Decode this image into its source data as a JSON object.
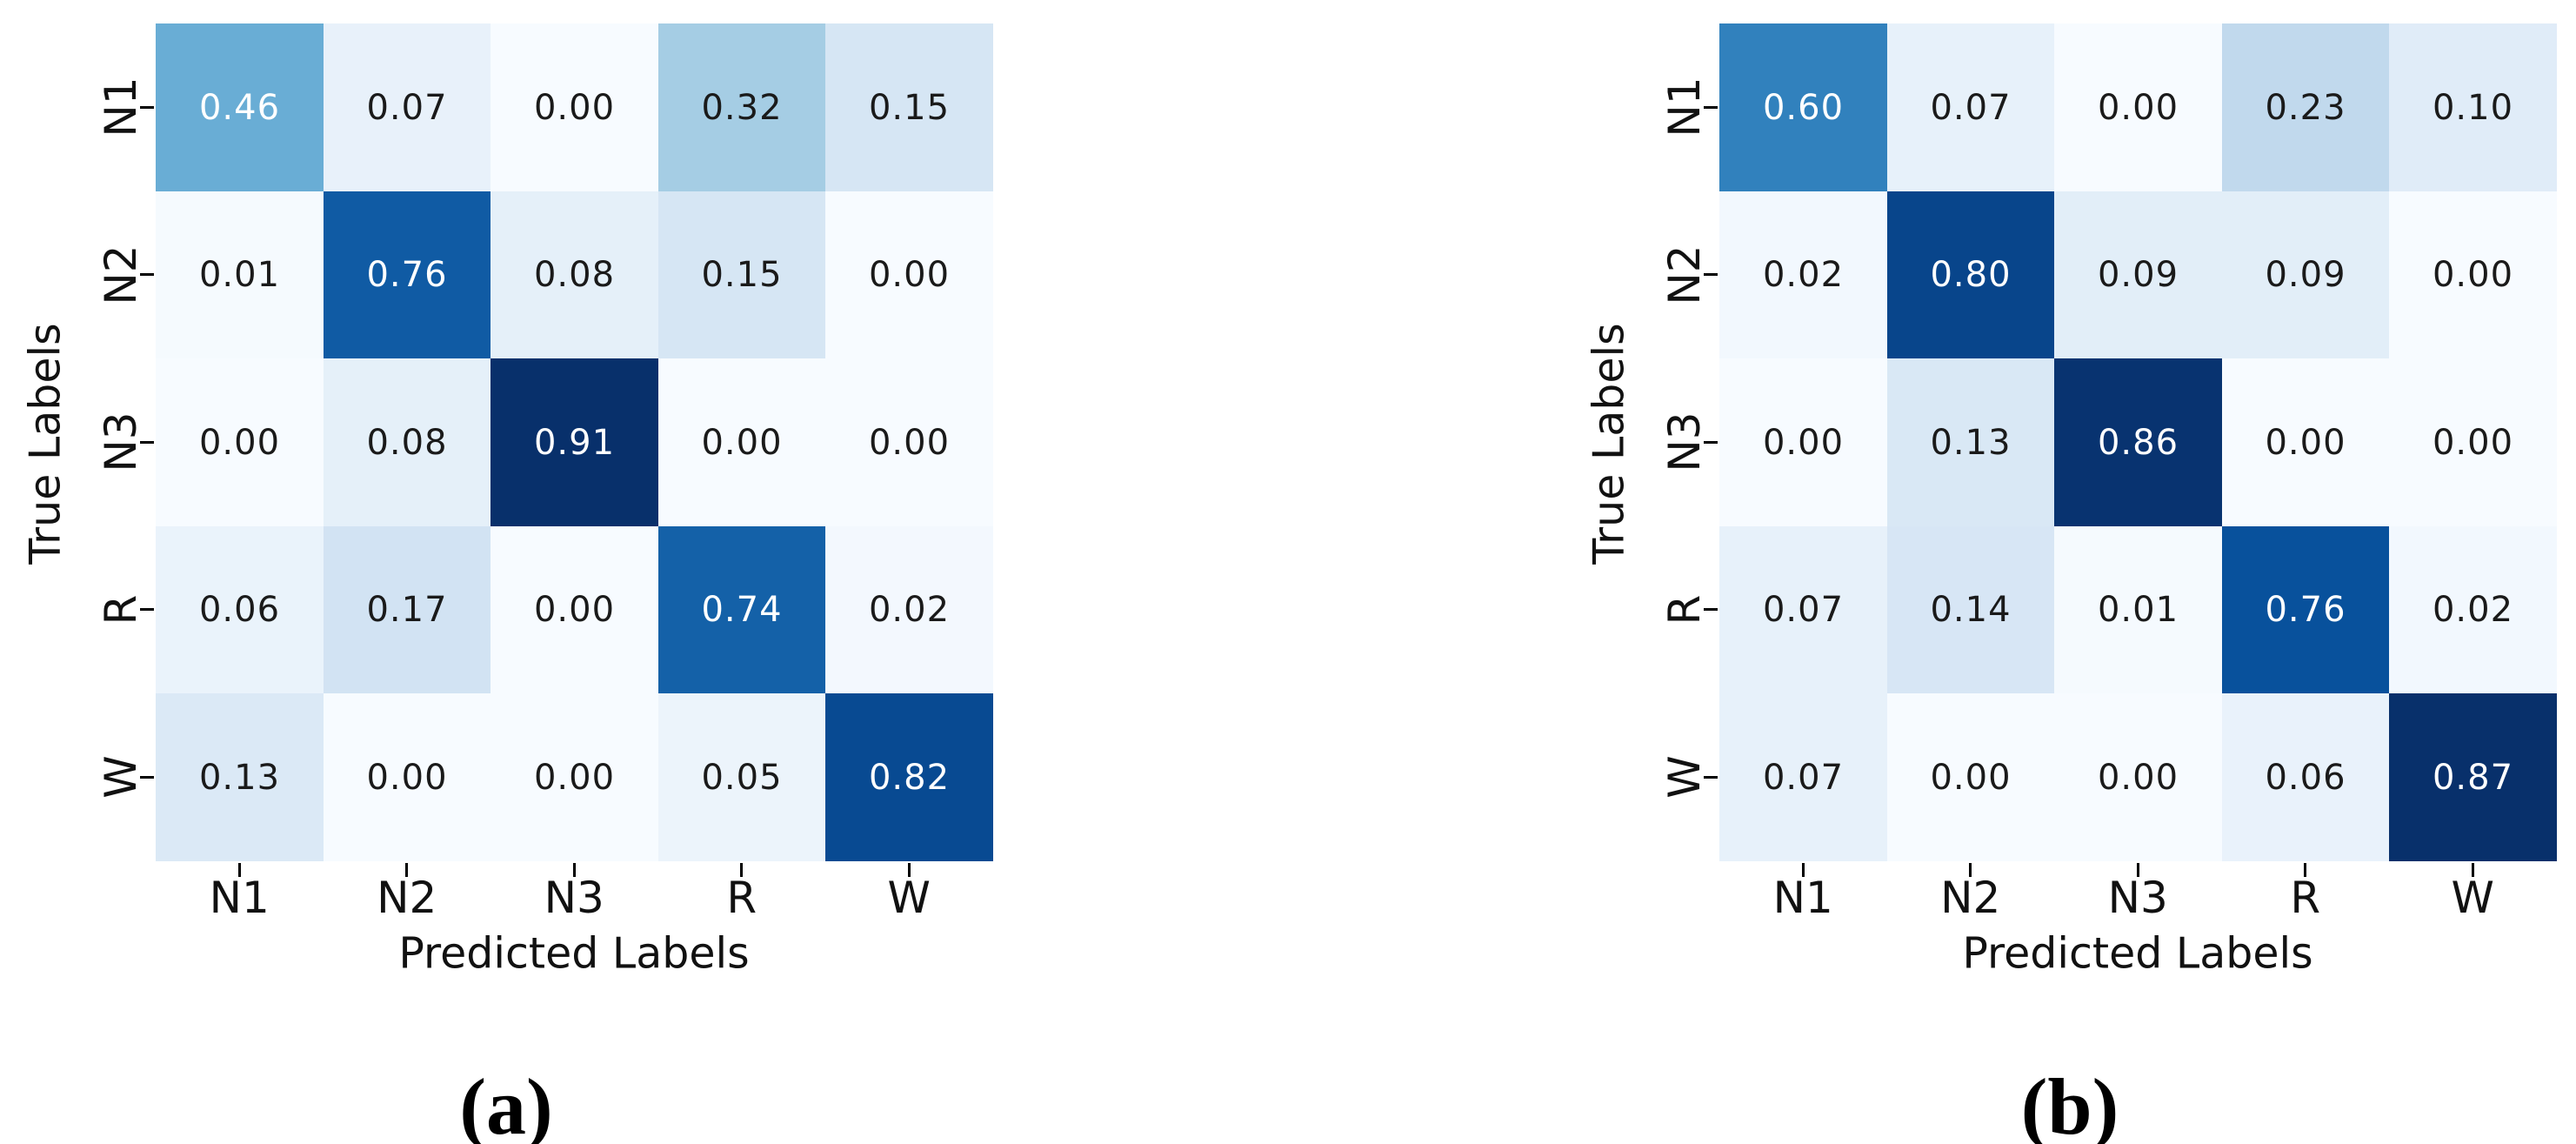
{
  "page": {
    "background": "#ffffff"
  },
  "chart_data": [
    {
      "type": "heatmap",
      "caption": "(a)",
      "xlabel": "Predicted Labels",
      "ylabel": "True Labels",
      "x_categories": [
        "N1",
        "N2",
        "N3",
        "R",
        "W"
      ],
      "y_categories": [
        "N1",
        "N2",
        "N3",
        "R",
        "W"
      ],
      "matrix": [
        [
          0.46,
          0.07,
          0.0,
          0.32,
          0.15
        ],
        [
          0.01,
          0.76,
          0.08,
          0.15,
          0.0
        ],
        [
          0.0,
          0.08,
          0.91,
          0.0,
          0.0
        ],
        [
          0.06,
          0.17,
          0.0,
          0.74,
          0.02
        ],
        [
          0.13,
          0.0,
          0.0,
          0.05,
          0.82
        ]
      ],
      "vmin": 0,
      "vmax": 0.91,
      "value_format": "2-decimals",
      "colormap": "Blues",
      "legend": "none",
      "grid": "off"
    },
    {
      "type": "heatmap",
      "caption": "(b)",
      "xlabel": "Predicted Labels",
      "ylabel": "True Labels",
      "x_categories": [
        "N1",
        "N2",
        "N3",
        "R",
        "W"
      ],
      "y_categories": [
        "N1",
        "N2",
        "N3",
        "R",
        "W"
      ],
      "matrix": [
        [
          0.6,
          0.07,
          0.0,
          0.23,
          0.1
        ],
        [
          0.02,
          0.8,
          0.09,
          0.09,
          0.0
        ],
        [
          0.0,
          0.13,
          0.86,
          0.0,
          0.0
        ],
        [
          0.07,
          0.14,
          0.01,
          0.76,
          0.02
        ],
        [
          0.07,
          0.0,
          0.0,
          0.06,
          0.87
        ]
      ],
      "vmin": 0,
      "vmax": 0.87,
      "value_format": "2-decimals",
      "colormap": "Blues",
      "legend": "none",
      "grid": "off"
    }
  ],
  "colormap_stops": {
    "Blues": [
      [
        0.0,
        [
          247,
          251,
          255
        ]
      ],
      [
        0.125,
        [
          222,
          235,
          247
        ]
      ],
      [
        0.25,
        [
          198,
          219,
          239
        ]
      ],
      [
        0.375,
        [
          158,
          202,
          225
        ]
      ],
      [
        0.5,
        [
          107,
          174,
          214
        ]
      ],
      [
        0.625,
        [
          66,
          146,
          198
        ]
      ],
      [
        0.75,
        [
          33,
          113,
          181
        ]
      ],
      [
        0.875,
        [
          8,
          81,
          156
        ]
      ],
      [
        1.0,
        [
          8,
          48,
          107
        ]
      ]
    ]
  },
  "annotation_colors": {
    "dark_text": "#1a1a1a",
    "light_text": "#ffffff",
    "tick_color": "#000000",
    "luminance_threshold": 0.408
  }
}
